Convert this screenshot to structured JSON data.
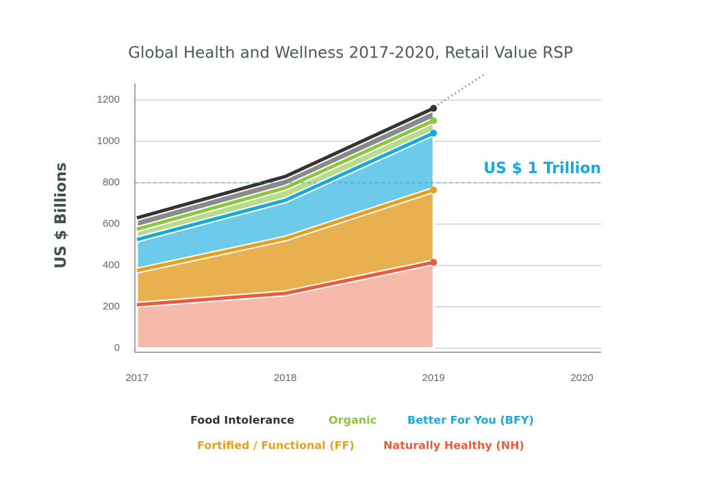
{
  "chart_data": {
    "type": "stacked_area",
    "title": "Global Health and Wellness 2017-2020, Retail Value RSP",
    "y_label": "US $ Billions",
    "x": [
      2017,
      2018,
      2019
    ],
    "series": [
      {
        "name": "Naturally Healthy (NH)",
        "color": "#ec5b3c",
        "area_color": "#f7b9a9",
        "values": [
          210,
          265,
          415
        ]
      },
      {
        "name": "Fortified / Functional (FF)",
        "color": "#e6a01f",
        "area_color": "#e9b04f",
        "values": [
          165,
          265,
          350
        ]
      },
      {
        "name": "Better For You (BFY)",
        "color": "#19a8d8",
        "area_color": "#6ccbe8",
        "values": [
          150,
          185,
          275
        ]
      },
      {
        "name": "Organic",
        "color": "#8cc63f",
        "area_color": "#b8dc8b",
        "values": [
          50,
          60,
          60
        ]
      },
      {
        "name": "Food Intolerance",
        "color": "#333333",
        "area_color": "#8a8a8a",
        "values": [
          55,
          55,
          60
        ]
      }
    ],
    "xlim": [
      2017,
      2020
    ],
    "xticks": [
      2017,
      2018,
      2019,
      2020
    ],
    "ylim": [
      0,
      1280
    ],
    "yticks": [
      0,
      200,
      400,
      600,
      800,
      1000,
      1200
    ],
    "grid": true,
    "annotation": {
      "text": "US $ 1 Trillion",
      "y": 800,
      "color": "#19a8d8"
    }
  }
}
